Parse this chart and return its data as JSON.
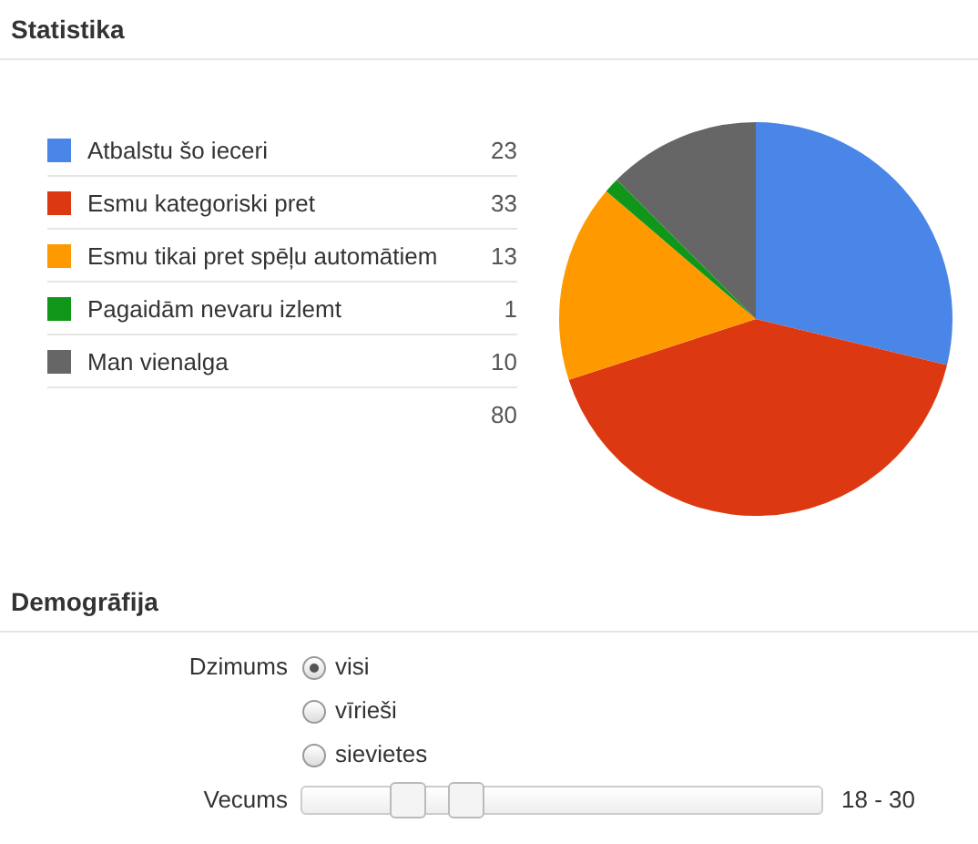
{
  "chart_data": [
    {
      "type": "pie",
      "title": "Statistika",
      "categories": [
        "Atbalstu šo ieceri",
        "Esmu kategoriski pret",
        "Esmu tikai pret spēļu automātiem",
        "Pagaidām nevaru izlemt",
        "Man vienalga"
      ],
      "values": [
        23,
        33,
        13,
        1,
        10
      ],
      "colors": [
        "#4a86e8",
        "#dc3912",
        "#ff9900",
        "#109618",
        "#666666"
      ],
      "data_labels": true,
      "legend": "left",
      "annotations": [
        "80"
      ]
    },
    {
      "type": "other",
      "title": "Demogrāfija",
      "annotations": [
        "Dzimums",
        "visi",
        "vīrieši",
        "sievietes",
        "Vecums",
        "18 - 30"
      ]
    }
  ]
}
